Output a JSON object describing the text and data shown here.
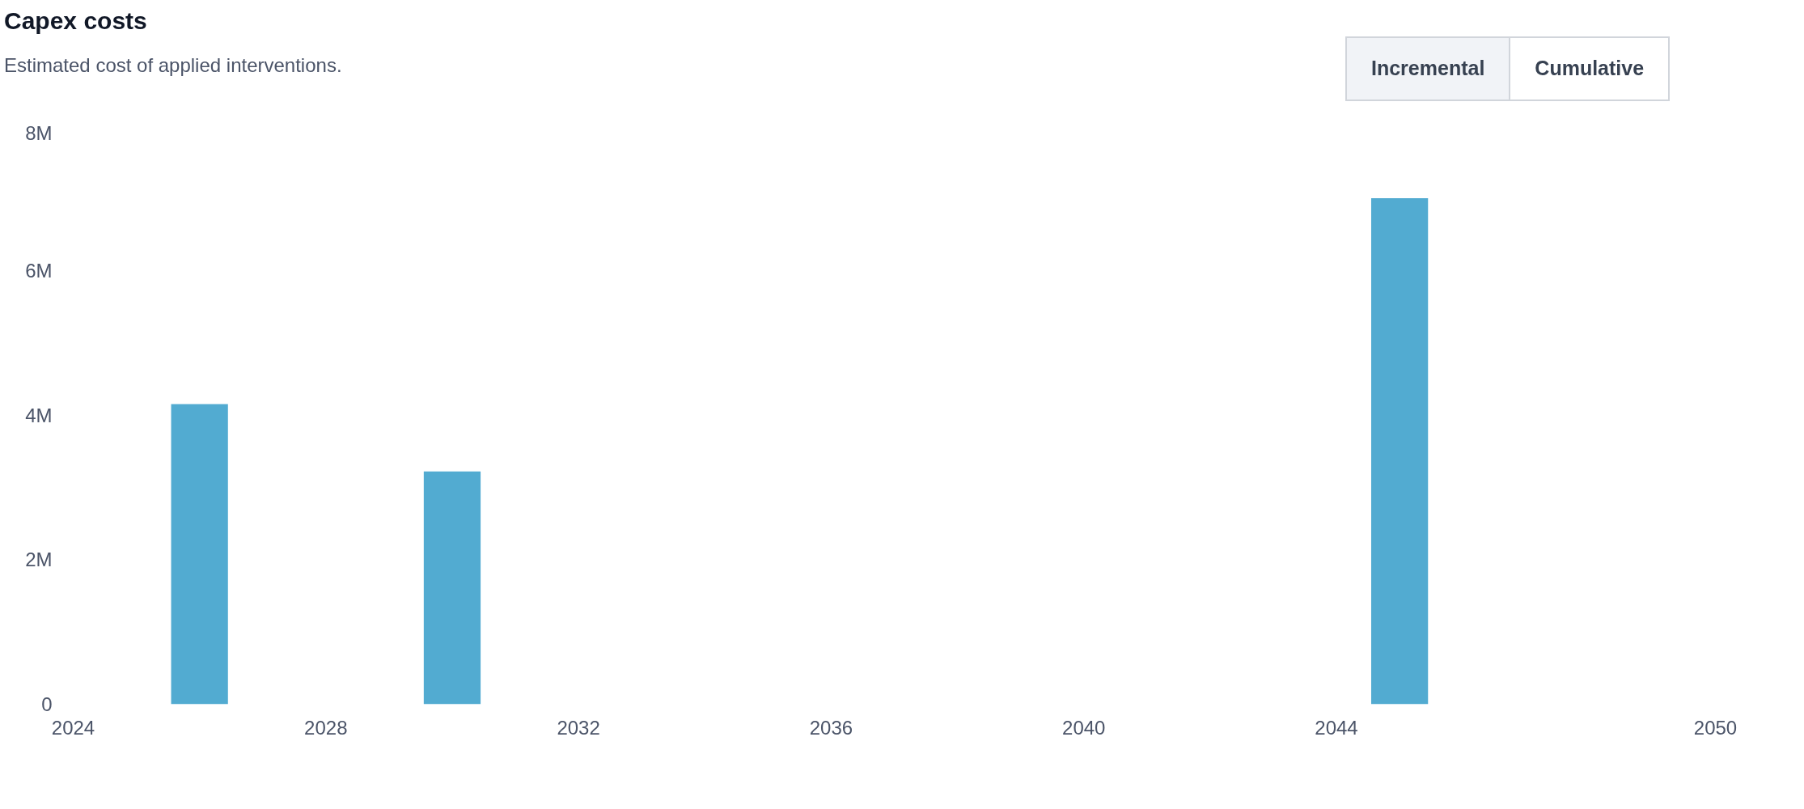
{
  "chart_data": {
    "type": "bar",
    "title": "Capex costs",
    "subtitle": "Estimated cost of applied interventions.",
    "x": [
      2026,
      2030,
      2045
    ],
    "values": [
      4150000,
      3220000,
      7000000
    ],
    "color": "#52abd1",
    "xlim": [
      2024,
      2050
    ],
    "xticks": [
      2024,
      2028,
      2032,
      2036,
      2040,
      2044,
      2050
    ],
    "ylim": [
      0,
      8000000
    ],
    "yticks": [
      {
        "value": 0,
        "label": "0"
      },
      {
        "value": 2000000,
        "label": "2M"
      },
      {
        "value": 4000000,
        "label": "4M"
      },
      {
        "value": 6000000,
        "label": "6M"
      },
      {
        "value": 8000000,
        "label": "8M"
      }
    ],
    "grid": false,
    "annotations": [
      "Incremental",
      "Cumulative"
    ]
  }
}
